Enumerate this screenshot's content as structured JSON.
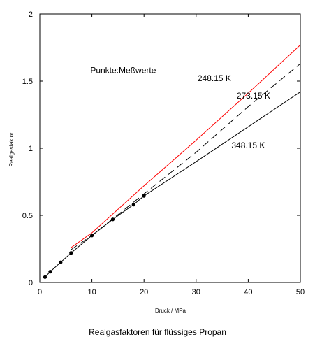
{
  "chart_data": {
    "type": "line",
    "title": "Realgasfaktoren für flüssiges Propan",
    "xlabel": "Druck / MPa",
    "ylabel": "Realgasfaktor",
    "xlim": [
      0,
      50
    ],
    "ylim": [
      0,
      2
    ],
    "xticks": [
      0,
      10,
      20,
      30,
      40,
      50
    ],
    "yticks": [
      0,
      0.5,
      1,
      1.5,
      2
    ],
    "ytick_labels": [
      "0",
      "0.5",
      "1",
      "1.5",
      "2"
    ],
    "grid": false,
    "series": [
      {
        "name": "248.15 K",
        "style": "solid",
        "color": "#ff0000",
        "x": [
          6,
          10,
          20,
          30,
          40,
          50
        ],
        "y": [
          0.26,
          0.37,
          0.72,
          1.06,
          1.41,
          1.77
        ]
      },
      {
        "name": "273.15 K",
        "style": "dashed",
        "color": "#000000",
        "x": [
          6,
          10,
          20,
          30,
          40,
          50
        ],
        "y": [
          0.245,
          0.35,
          0.66,
          0.97,
          1.31,
          1.63
        ]
      },
      {
        "name": "348.15 K",
        "style": "solid",
        "color": "#000000",
        "x": [
          1,
          2,
          4,
          6,
          10,
          14,
          18,
          20,
          30,
          40,
          50
        ],
        "y": [
          0.04,
          0.08,
          0.15,
          0.22,
          0.35,
          0.47,
          0.58,
          0.645,
          0.9,
          1.16,
          1.42
        ]
      },
      {
        "name": "Meßwerte",
        "style": "markers",
        "color": "#000000",
        "x": [
          1,
          2,
          4,
          6,
          10,
          14,
          18,
          20
        ],
        "y": [
          0.04,
          0.08,
          0.15,
          0.22,
          0.35,
          0.47,
          0.58,
          0.645
        ]
      }
    ],
    "annotations": [
      {
        "text": "Punkte:Meßwerte",
        "x": 16,
        "y": 1.56
      },
      {
        "text": "248.15 K",
        "x": 33.5,
        "y": 1.5
      },
      {
        "text": "273.15 K",
        "x": 41,
        "y": 1.37
      },
      {
        "text": "348.15 K",
        "x": 40,
        "y": 1.0
      }
    ]
  }
}
